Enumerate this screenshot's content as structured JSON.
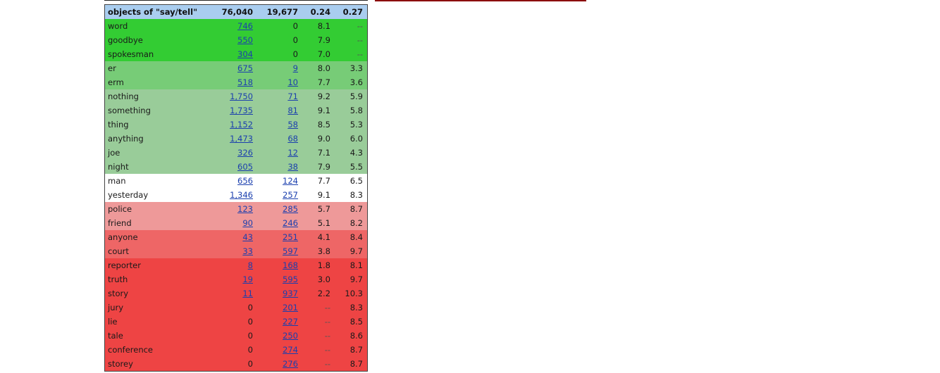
{
  "table": {
    "header": {
      "title": "objects of \"say/tell\"",
      "freq1": "76,040",
      "freq2": "19,677",
      "score1": "0.24",
      "score2": "0.27"
    },
    "rows": [
      {
        "word": "word",
        "f1": "746",
        "f2": "0",
        "s1": "8.1",
        "s2": "--",
        "bg": "#33cc33"
      },
      {
        "word": "goodbye",
        "f1": "550",
        "f2": "0",
        "s1": "7.9",
        "s2": "--",
        "bg": "#33cc33"
      },
      {
        "word": "spokesman",
        "f1": "304",
        "f2": "0",
        "s1": "7.0",
        "s2": "--",
        "bg": "#33cc33"
      },
      {
        "word": "er",
        "f1": "675",
        "f2": "9",
        "s1": "8.0",
        "s2": "3.3",
        "bg": "#77cc77"
      },
      {
        "word": "erm",
        "f1": "518",
        "f2": "10",
        "s1": "7.7",
        "s2": "3.6",
        "bg": "#77cc77"
      },
      {
        "word": "nothing",
        "f1": "1,750",
        "f2": "71",
        "s1": "9.2",
        "s2": "5.9",
        "bg": "#99cc99"
      },
      {
        "word": "something",
        "f1": "1,735",
        "f2": "81",
        "s1": "9.1",
        "s2": "5.8",
        "bg": "#99cc99"
      },
      {
        "word": "thing",
        "f1": "1,152",
        "f2": "58",
        "s1": "8.5",
        "s2": "5.3",
        "bg": "#99cc99"
      },
      {
        "word": "anything",
        "f1": "1,473",
        "f2": "68",
        "s1": "9.0",
        "s2": "6.0",
        "bg": "#99cc99"
      },
      {
        "word": "joe",
        "f1": "326",
        "f2": "12",
        "s1": "7.1",
        "s2": "4.3",
        "bg": "#99cc99"
      },
      {
        "word": "night",
        "f1": "605",
        "f2": "38",
        "s1": "7.9",
        "s2": "5.5",
        "bg": "#99cc99"
      },
      {
        "word": "man",
        "f1": "656",
        "f2": "124",
        "s1": "7.7",
        "s2": "6.5",
        "bg": "#ffffff"
      },
      {
        "word": "yesterday",
        "f1": "1,346",
        "f2": "257",
        "s1": "9.1",
        "s2": "8.3",
        "bg": "#ffffff"
      },
      {
        "word": "police",
        "f1": "123",
        "f2": "285",
        "s1": "5.7",
        "s2": "8.7",
        "bg": "#ee9999"
      },
      {
        "word": "friend",
        "f1": "90",
        "f2": "246",
        "s1": "5.1",
        "s2": "8.2",
        "bg": "#ee9999"
      },
      {
        "word": "anyone",
        "f1": "43",
        "f2": "251",
        "s1": "4.1",
        "s2": "8.4",
        "bg": "#ee6666"
      },
      {
        "word": "court",
        "f1": "33",
        "f2": "597",
        "s1": "3.8",
        "s2": "9.7",
        "bg": "#ee6666"
      },
      {
        "word": "reporter",
        "f1": "8",
        "f2": "168",
        "s1": "1.8",
        "s2": "8.1",
        "bg": "#ee4444"
      },
      {
        "word": "truth",
        "f1": "19",
        "f2": "595",
        "s1": "3.0",
        "s2": "9.7",
        "bg": "#ee4444"
      },
      {
        "word": "story",
        "f1": "11",
        "f2": "937",
        "s1": "2.2",
        "s2": "10.3",
        "bg": "#ee4444"
      },
      {
        "word": "jury",
        "f1": "0",
        "f2": "201",
        "s1": "--",
        "s2": "8.3",
        "bg": "#ee4444"
      },
      {
        "word": "lie",
        "f1": "0",
        "f2": "227",
        "s1": "--",
        "s2": "8.5",
        "bg": "#ee4444"
      },
      {
        "word": "tale",
        "f1": "0",
        "f2": "250",
        "s1": "--",
        "s2": "8.6",
        "bg": "#ee4444"
      },
      {
        "word": "conference",
        "f1": "0",
        "f2": "274",
        "s1": "--",
        "s2": "8.7",
        "bg": "#ee4444"
      },
      {
        "word": "storey",
        "f1": "0",
        "f2": "276",
        "s1": "--",
        "s2": "8.7",
        "bg": "#ee4444"
      }
    ]
  }
}
